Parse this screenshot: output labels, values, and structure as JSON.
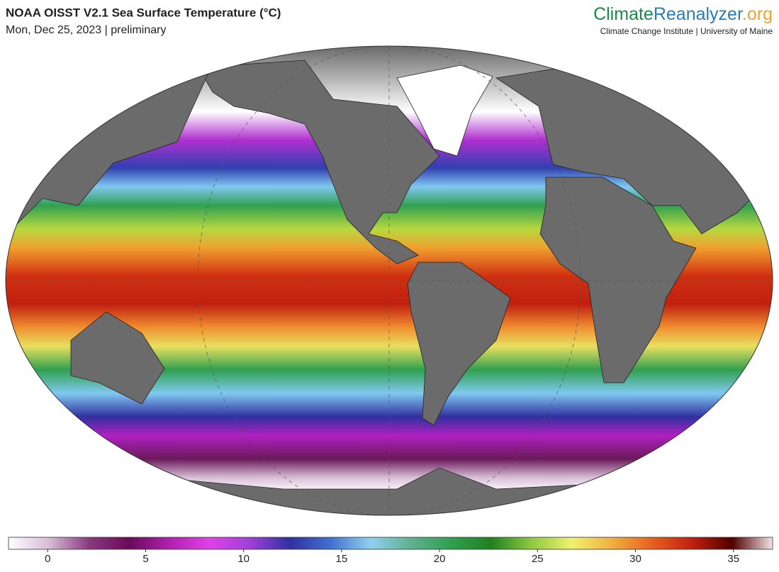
{
  "header": {
    "title": "NOAA OISST V2.1 Sea Surface Temperature (°C)",
    "subtitle": "Mon, Dec 25, 2023 | preliminary",
    "brand": [
      "Climate",
      "Reanalyzer",
      ".org"
    ],
    "brand_colors": [
      "#1a8a4a",
      "#2a7ab8",
      "#f0a030"
    ],
    "tagline": "Climate Change Institute | University of Maine"
  },
  "colorbar": {
    "range": [
      -2,
      37
    ],
    "ticks": [
      0,
      5,
      10,
      15,
      20,
      25,
      30,
      35
    ],
    "palette": [
      "#ffffff",
      "#d8bcd8",
      "#8a3a80",
      "#6a0a5a",
      "#b020b0",
      "#e040e8",
      "#a040d8",
      "#3030a0",
      "#4070d0",
      "#90d0f0",
      "#60b090",
      "#30a050",
      "#208020",
      "#90c840",
      "#f0f070",
      "#f0b040",
      "#e86020",
      "#c02010",
      "#500000",
      "#f4e4e4"
    ]
  }
}
